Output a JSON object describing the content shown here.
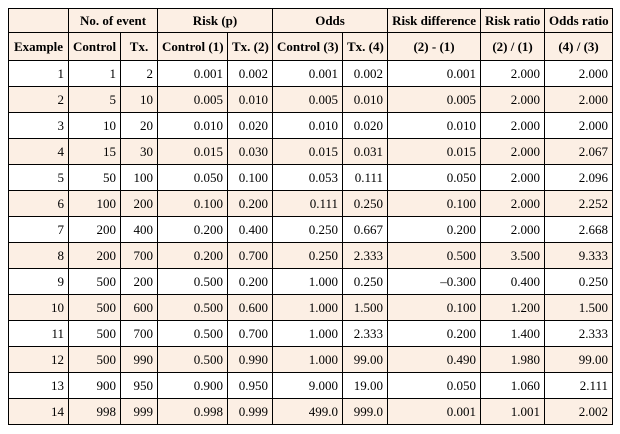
{
  "table": {
    "header_top": [
      "No. of event",
      "Risk (p)",
      "Odds",
      "Risk difference",
      "Risk ratio",
      "Odds ratio"
    ],
    "header": [
      "Example",
      "Control",
      "Tx.",
      "Control (1)",
      "Tx. (2)",
      "Control (3)",
      "Tx. (4)",
      "(2) - (1)",
      "(2) / (1)",
      "(4) / (3)"
    ],
    "rows": [
      [
        "1",
        "1",
        "2",
        "0.001",
        "0.002",
        "0.001",
        "0.002",
        "0.001",
        "2.000",
        "2.000"
      ],
      [
        "2",
        "5",
        "10",
        "0.005",
        "0.010",
        "0.005",
        "0.010",
        "0.005",
        "2.000",
        "2.000"
      ],
      [
        "3",
        "10",
        "20",
        "0.010",
        "0.020",
        "0.010",
        "0.020",
        "0.010",
        "2.000",
        "2.000"
      ],
      [
        "4",
        "15",
        "30",
        "0.015",
        "0.030",
        "0.015",
        "0.031",
        "0.015",
        "2.000",
        "2.067"
      ],
      [
        "5",
        "50",
        "100",
        "0.050",
        "0.100",
        "0.053",
        "0.111",
        "0.050",
        "2.000",
        "2.096"
      ],
      [
        "6",
        "100",
        "200",
        "0.100",
        "0.200",
        "0.111",
        "0.250",
        "0.100",
        "2.000",
        "2.252"
      ],
      [
        "7",
        "200",
        "400",
        "0.200",
        "0.400",
        "0.250",
        "0.667",
        "0.200",
        "2.000",
        "2.668"
      ],
      [
        "8",
        "200",
        "700",
        "0.200",
        "0.700",
        "0.250",
        "2.333",
        "0.500",
        "3.500",
        "9.333"
      ],
      [
        "9",
        "500",
        "200",
        "0.500",
        "0.200",
        "1.000",
        "0.250",
        "–0.300",
        "0.400",
        "0.250"
      ],
      [
        "10",
        "500",
        "600",
        "0.500",
        "0.600",
        "1.000",
        "1.500",
        "0.100",
        "1.200",
        "1.500"
      ],
      [
        "11",
        "500",
        "700",
        "0.500",
        "0.700",
        "1.000",
        "2.333",
        "0.200",
        "1.400",
        "2.333"
      ],
      [
        "12",
        "500",
        "990",
        "0.500",
        "0.990",
        "1.000",
        "99.00",
        "0.490",
        "1.980",
        "99.00"
      ],
      [
        "13",
        "900",
        "950",
        "0.900",
        "0.950",
        "9.000",
        "19.00",
        "0.050",
        "1.060",
        "2.111"
      ],
      [
        "14",
        "998",
        "999",
        "0.998",
        "0.999",
        "499.0",
        "999.0",
        "0.001",
        "1.001",
        "2.002"
      ]
    ]
  }
}
